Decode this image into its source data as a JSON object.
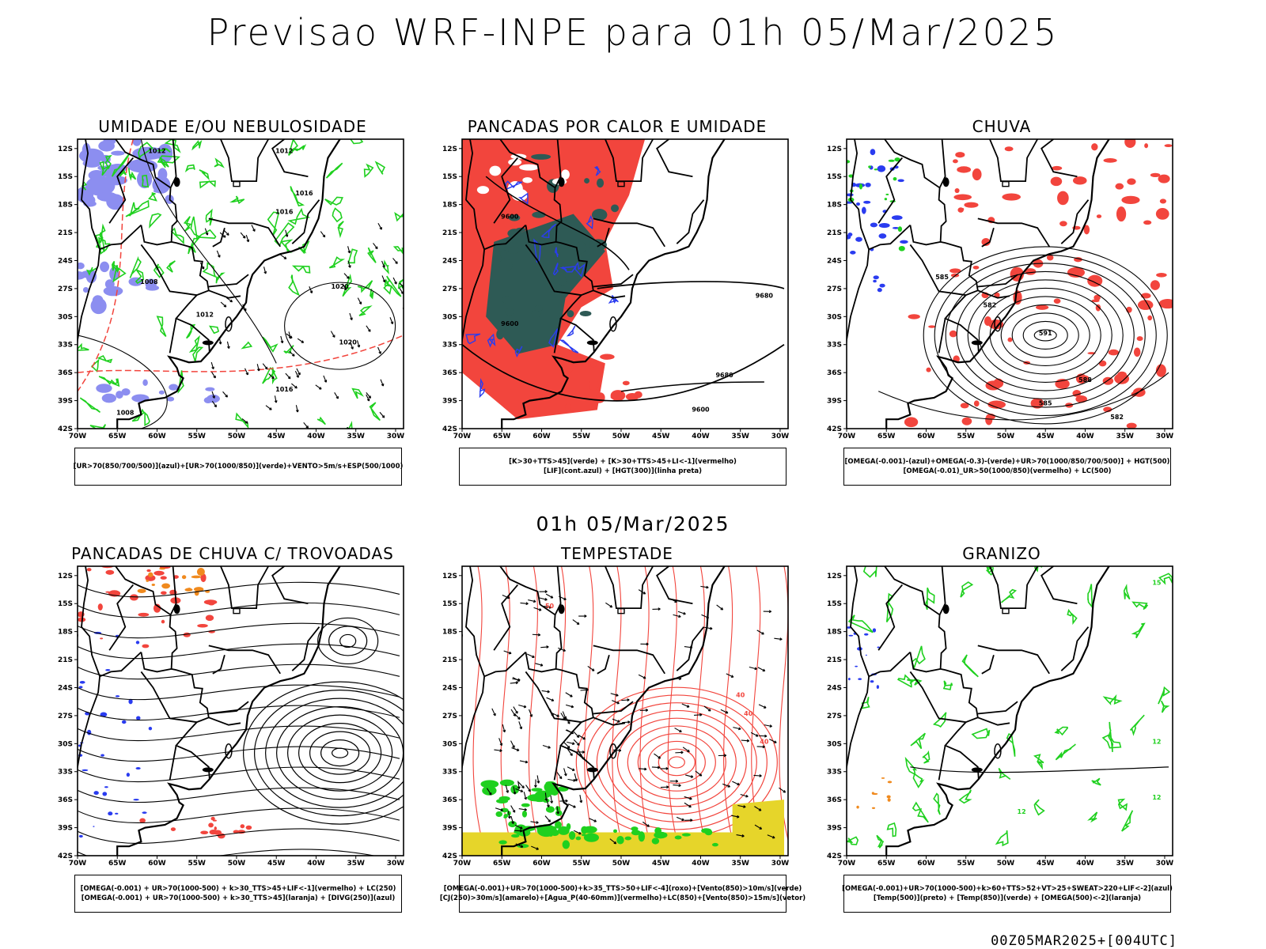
{
  "title": "Previsao WRF-INPE  para 01h 05/Mar/2025",
  "mid_label": "01h 05/Mar/2025",
  "footer": "00Z05MAR2025+[004UTC]",
  "axes": {
    "lat_ticks": [
      "12S",
      "15S",
      "18S",
      "21S",
      "24S",
      "27S",
      "30S",
      "33S",
      "36S",
      "39S",
      "42S"
    ],
    "lon_ticks": [
      "70W",
      "65W",
      "60W",
      "55W",
      "50W",
      "45W",
      "40W",
      "35W",
      "30W"
    ]
  },
  "panels": [
    {
      "id": "umidade",
      "title": "UMIDADE E/OU NEBULOSIDADE",
      "legend": [
        "[UR>70(850/700/500)](azul)+[UR>70(1000/850)](verde)+VENTO>5m/s+ESP(500/1000)"
      ],
      "contour_labels": [
        "1012",
        "1012",
        "1016",
        "1016",
        "1008",
        "1012",
        "1020",
        "1020",
        "1016",
        "1008"
      ]
    },
    {
      "id": "pancadas-calor",
      "title": "PANCADAS POR CALOR E UMIDADE",
      "legend": [
        "[K>30+TTS>45](verde) + [K>30+TTS>45+LI<-1](vermelho)",
        "[LIF](cont.azul) + [HGT(300)](linha preta)"
      ],
      "contour_labels": [
        "9600",
        "9600",
        "9680",
        "9680",
        "9600"
      ]
    },
    {
      "id": "chuva",
      "title": "CHUVA",
      "legend": [
        "[OMEGA(-0.001)-(azul)+OMEGA(-0.3)-(verde)+UR>70(1000/850/700/500)] + HGT(500)",
        "[OMEGA(-0.01)_UR>50(1000/850)(vermelho) + LC(500)"
      ],
      "contour_labels": [
        "585",
        "582",
        "591",
        "588",
        "585",
        "582"
      ]
    },
    {
      "id": "pancadas-trovoadas",
      "title": "PANCADAS DE CHUVA C/ TROVOADAS",
      "legend": [
        "[OMEGA(-0.001) + UR>70(1000-500) + k>30_TTS>45+LIF<-1](vermelho) + LC(250)",
        "[OMEGA(-0.001) + UR>70(1000-500) + k>30_TTS>45](laranja) + [DIVG(250)](azul)"
      ],
      "contour_labels": []
    },
    {
      "id": "tempestade",
      "title": "TEMPESTADE",
      "legend": [
        "[OMEGA(-0.001)+UR>70(1000-500)+k>35_TTS>50+LIF<-4](roxo)+[Vento(850)>10m/s](verde)",
        "[CJ(250)>30m/s](amarelo)+[Agua_P(40-60mm)](vermelho)+LC(850)+[Vento(850)>15m/s](vetor)"
      ],
      "contour_labels": [
        "50",
        "40",
        "40",
        "40"
      ]
    },
    {
      "id": "granizo",
      "title": "GRANIZO",
      "legend": [
        "[OMEGA(-0.001)+UR>70(1000-500)+k>60+TTS>52+VT>25+SWEAT>220+LIF<-2](azul)",
        "[Temp(500)](preto) + [Temp(850)](verde) + [OMEGA(500)<-2](laranja)"
      ],
      "contour_labels": [
        "15",
        "12",
        "12",
        "12"
      ]
    }
  ],
  "colors": {
    "red": "#f2453d",
    "green": "#1fd01f",
    "blue": "#2a3cf0",
    "lightblue": "#8c8ef0",
    "darkteal": "#2e5a55",
    "yellow": "#e6d52a",
    "orange": "#f08a1e"
  }
}
